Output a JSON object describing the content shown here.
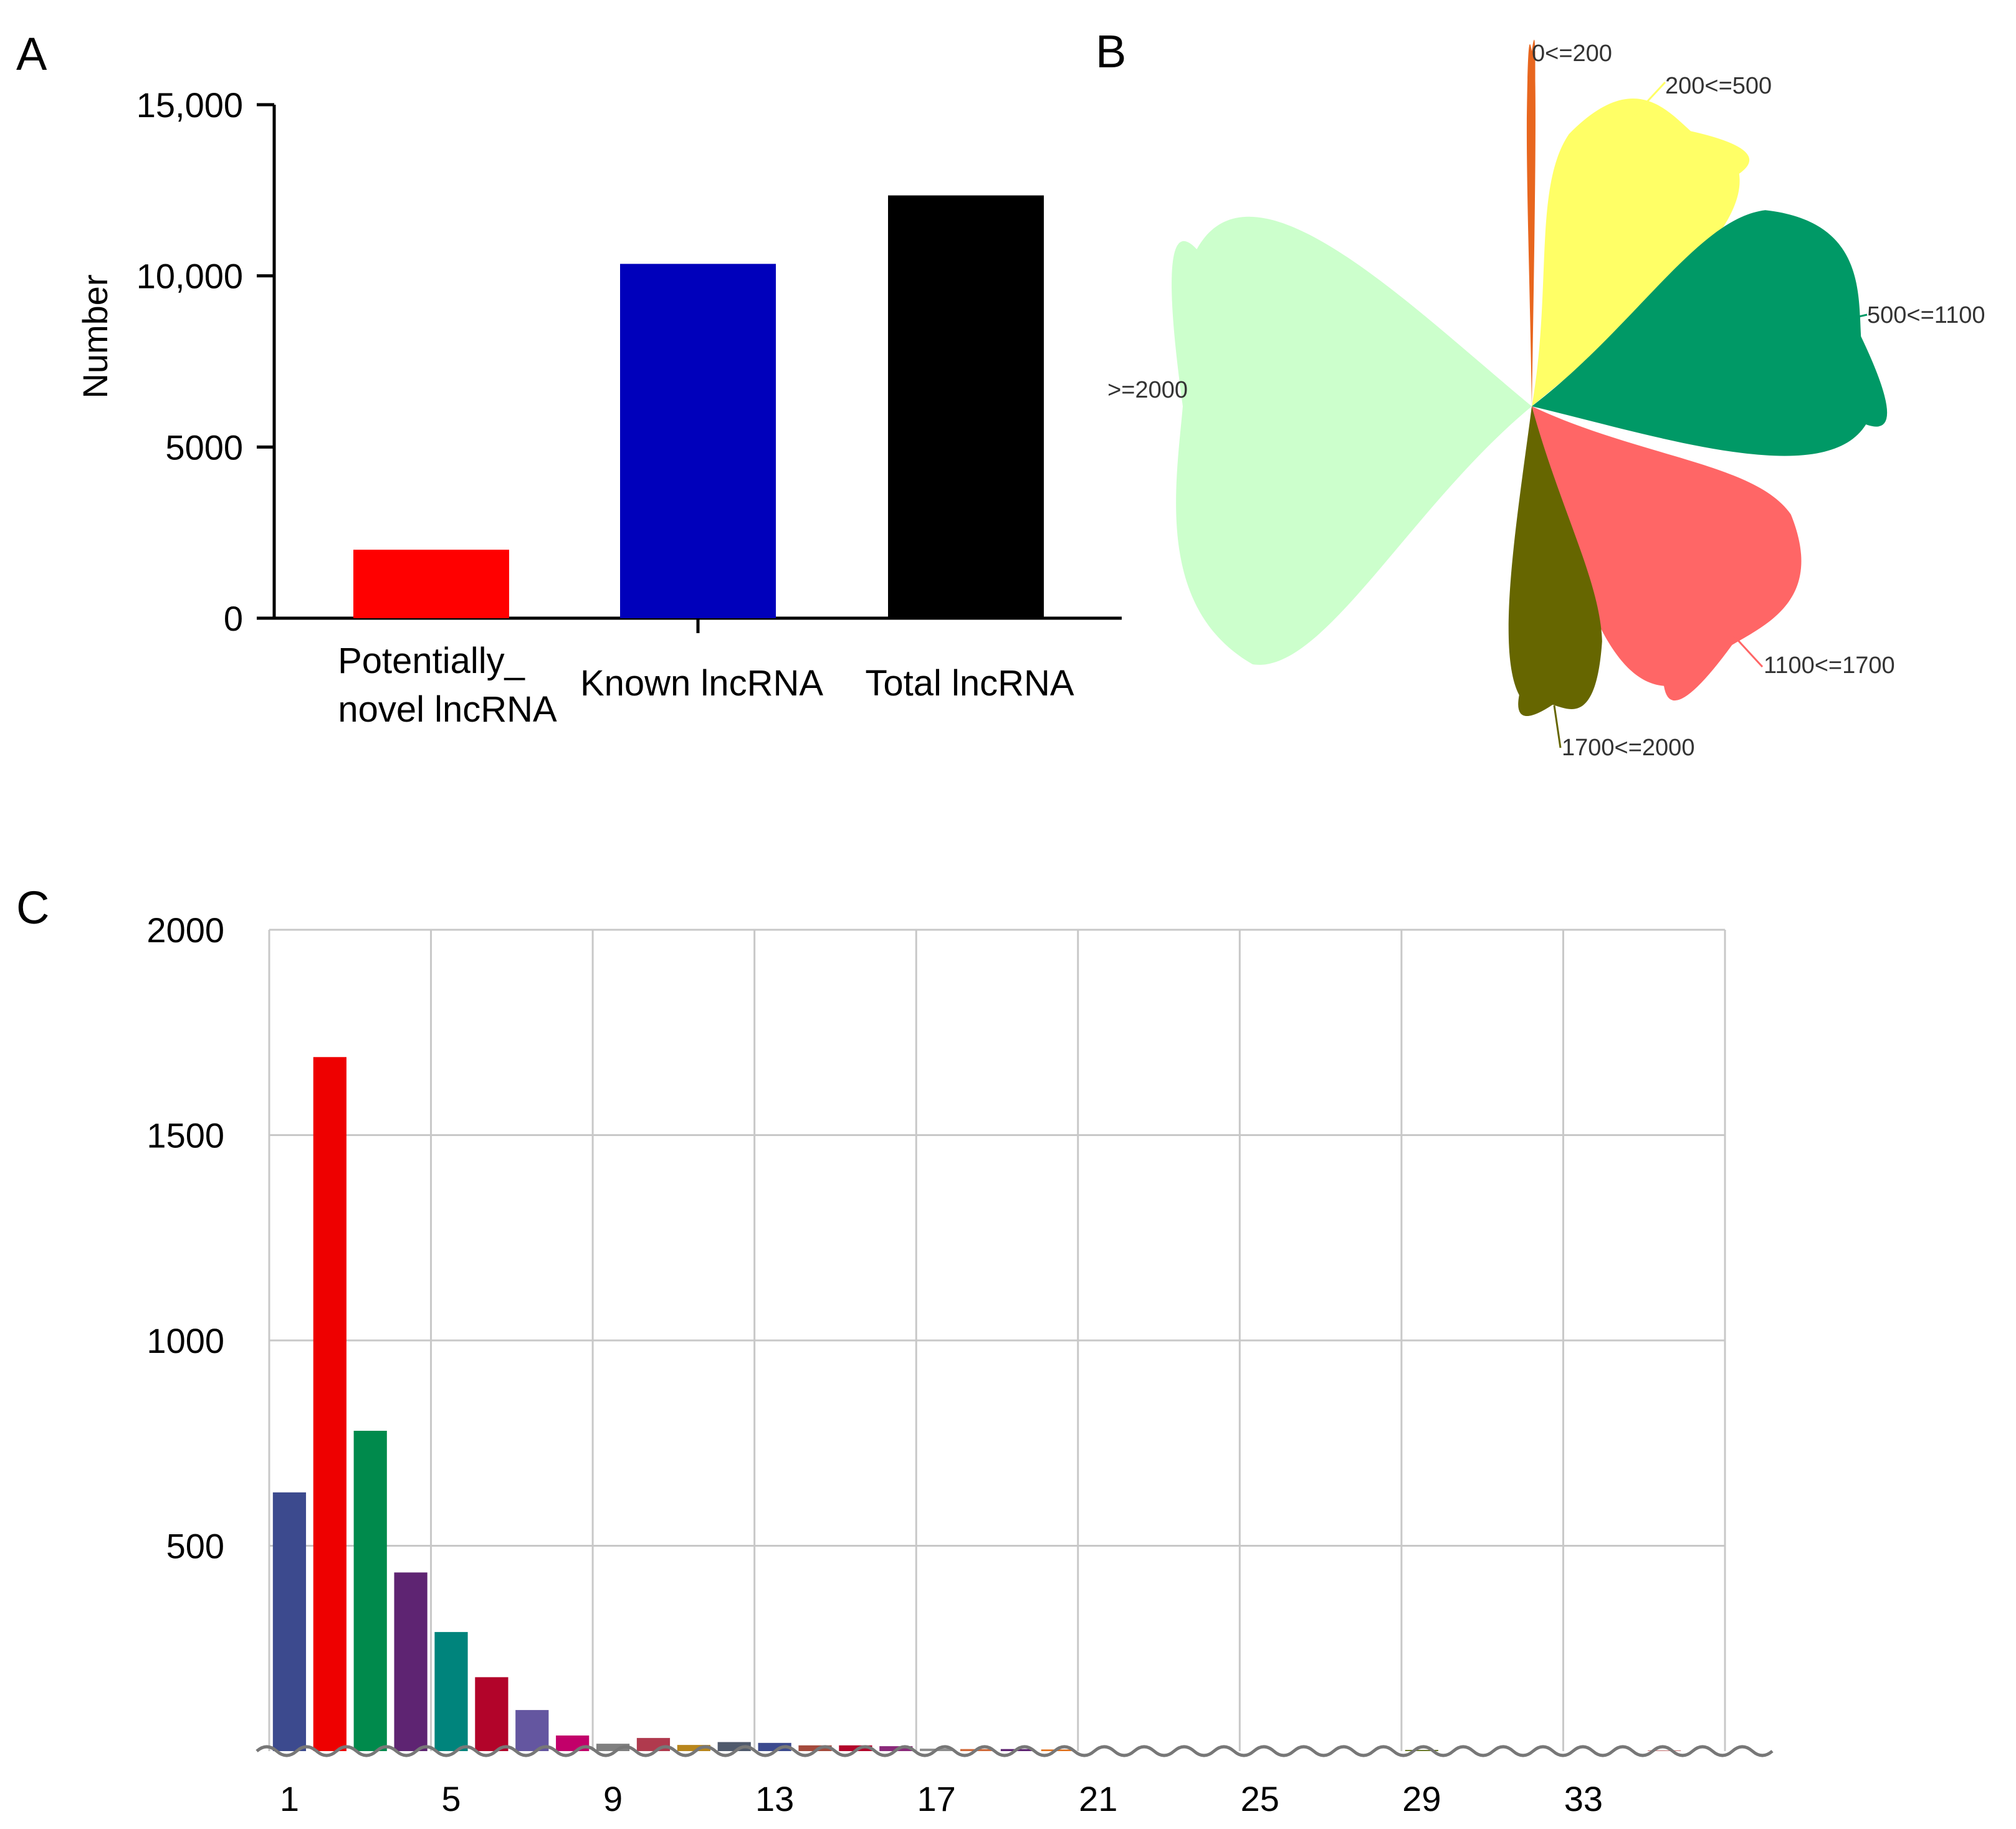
{
  "panels": {
    "a": "A",
    "b": "B",
    "c": "C"
  },
  "chart_data": [
    {
      "panel": "A",
      "type": "bar",
      "ylabel": "Number",
      "ylim": [
        0,
        15000
      ],
      "yticks": [
        0,
        5000,
        10000,
        15000
      ],
      "ytick_labels": [
        "0",
        "5000",
        "10,000",
        "15,000"
      ],
      "categories": [
        {
          "line1": "Potentially_",
          "line2": "novel lncRNA"
        },
        {
          "line1": "Known lncRNA",
          "line2": ""
        },
        {
          "line1": "Total lncRNA",
          "line2": ""
        }
      ],
      "values": [
        2000,
        10350,
        12350
      ],
      "colors": [
        "#ff0000",
        "#0000bb",
        "#000000"
      ]
    },
    {
      "panel": "B",
      "type": "pie",
      "style": "rose (petal) chart of lncRNA length ranges",
      "slices": [
        {
          "label": "0<=200",
          "value": 0.4,
          "color": "#e8661e"
        },
        {
          "label": "200<=500",
          "value": 14.5,
          "color": "#ffff66"
        },
        {
          "label": "500<=1100",
          "value": 24.5,
          "color": "#009966"
        },
        {
          "label": "1100<=1700",
          "value": 18.5,
          "color": "#ff6666"
        },
        {
          "label": "1700<=2000",
          "value": 7,
          "color": "#666600"
        },
        {
          "label": ">=2000",
          "value": 35.1,
          "color": "#ccffcc"
        }
      ]
    },
    {
      "panel": "C",
      "type": "bar",
      "ylim": [
        0,
        2000
      ],
      "yticks": [
        500,
        1000,
        1500,
        2000
      ],
      "xlim": [
        0.5,
        36.5
      ],
      "xticks": [
        1,
        5,
        9,
        13,
        17,
        21,
        25,
        29,
        33
      ],
      "x": [
        1,
        2,
        3,
        4,
        5,
        6,
        7,
        8,
        9,
        10,
        11,
        12,
        13,
        14,
        15,
        16,
        17,
        18,
        19,
        20,
        21,
        22,
        23,
        24,
        25,
        26,
        27,
        28,
        29,
        30,
        31,
        32,
        33,
        34,
        35,
        36
      ],
      "values": [
        630,
        1690,
        780,
        435,
        290,
        180,
        100,
        38,
        18,
        32,
        15,
        22,
        20,
        14,
        14,
        12,
        6,
        5,
        5,
        4,
        0,
        0,
        0,
        0,
        0,
        0,
        0,
        0,
        3,
        0,
        0,
        0,
        0,
        0,
        2,
        0
      ],
      "colors": [
        "#3c4a8e",
        "#ee0000",
        "#008a4c",
        "#5e2472",
        "#00847c",
        "#b2042a",
        "#6456a0",
        "#c2006a",
        "#808080",
        "#b03a4e",
        "#b8861c",
        "#505a6c",
        "#3c4a8e",
        "#a44a3c",
        "#b2042a",
        "#8a2a7a",
        "#8e8e8e",
        "#d06a3a",
        "#5e2472",
        "#e0701a",
        "#999999",
        "#999999",
        "#999999",
        "#999999",
        "#999999",
        "#999999",
        "#999999",
        "#999999",
        "#6b7a2a",
        "#999999",
        "#999999",
        "#999999",
        "#999999",
        "#999999",
        "#cc8888",
        "#999999"
      ]
    }
  ]
}
